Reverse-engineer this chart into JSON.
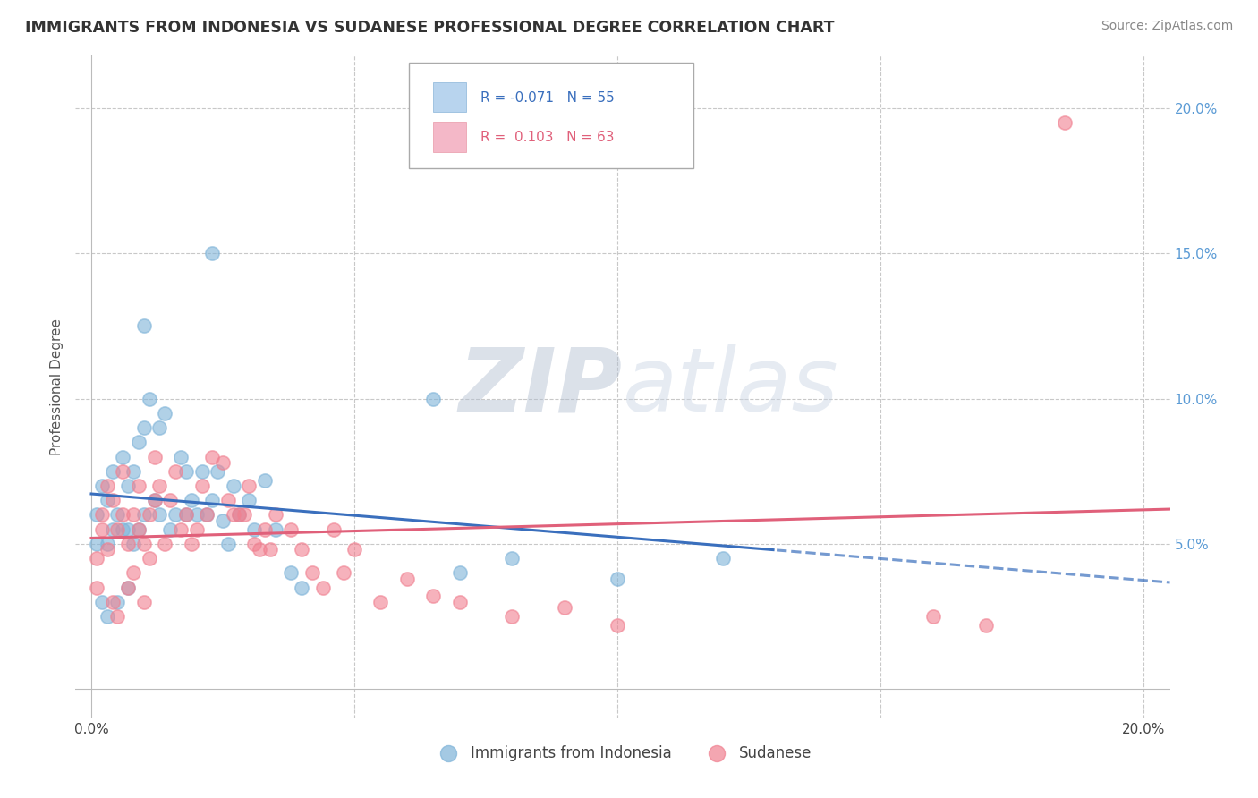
{
  "title": "IMMIGRANTS FROM INDONESIA VS SUDANESE PROFESSIONAL DEGREE CORRELATION CHART",
  "source": "Source: ZipAtlas.com",
  "ylabel_label": "Professional Degree",
  "xlim": [
    0.0,
    0.205
  ],
  "ylim": [
    -0.005,
    0.215
  ],
  "indonesia_color": "#7eb3d8",
  "sudanese_color": "#f08090",
  "indonesia_line_color": "#3a6fbd",
  "sudanese_line_color": "#e0607a",
  "watermark": "ZIPatlas",
  "right_tick_color": "#5b9bd5",
  "indonesia_seed": 42,
  "sudanese_seed": 99,
  "indonesia_points_x": [
    0.001,
    0.001,
    0.002,
    0.002,
    0.003,
    0.003,
    0.003,
    0.004,
    0.004,
    0.005,
    0.005,
    0.006,
    0.006,
    0.007,
    0.007,
    0.007,
    0.008,
    0.008,
    0.009,
    0.009,
    0.01,
    0.01,
    0.011,
    0.012,
    0.013,
    0.013,
    0.014,
    0.015,
    0.016,
    0.017,
    0.018,
    0.018,
    0.019,
    0.02,
    0.021,
    0.022,
    0.023,
    0.024,
    0.025,
    0.026,
    0.027,
    0.028,
    0.03,
    0.031,
    0.033,
    0.035,
    0.038,
    0.04,
    0.065,
    0.07,
    0.08,
    0.1,
    0.12,
    0.023,
    0.01
  ],
  "indonesia_points_y": [
    0.06,
    0.05,
    0.07,
    0.03,
    0.065,
    0.05,
    0.025,
    0.055,
    0.075,
    0.06,
    0.03,
    0.08,
    0.055,
    0.07,
    0.055,
    0.035,
    0.075,
    0.05,
    0.085,
    0.055,
    0.06,
    0.09,
    0.1,
    0.065,
    0.06,
    0.09,
    0.095,
    0.055,
    0.06,
    0.08,
    0.06,
    0.075,
    0.065,
    0.06,
    0.075,
    0.06,
    0.065,
    0.075,
    0.058,
    0.05,
    0.07,
    0.06,
    0.065,
    0.055,
    0.072,
    0.055,
    0.04,
    0.035,
    0.1,
    0.04,
    0.045,
    0.038,
    0.045,
    0.15,
    0.125
  ],
  "sudanese_points_x": [
    0.001,
    0.001,
    0.002,
    0.002,
    0.003,
    0.003,
    0.004,
    0.004,
    0.005,
    0.005,
    0.006,
    0.006,
    0.007,
    0.007,
    0.008,
    0.008,
    0.009,
    0.009,
    0.01,
    0.01,
    0.011,
    0.011,
    0.012,
    0.012,
    0.013,
    0.014,
    0.015,
    0.016,
    0.017,
    0.018,
    0.019,
    0.02,
    0.021,
    0.022,
    0.023,
    0.025,
    0.026,
    0.027,
    0.028,
    0.029,
    0.03,
    0.031,
    0.032,
    0.033,
    0.034,
    0.035,
    0.038,
    0.04,
    0.042,
    0.044,
    0.046,
    0.048,
    0.05,
    0.055,
    0.06,
    0.065,
    0.07,
    0.08,
    0.09,
    0.1,
    0.16,
    0.17,
    0.185
  ],
  "sudanese_points_y": [
    0.045,
    0.035,
    0.055,
    0.06,
    0.07,
    0.048,
    0.065,
    0.03,
    0.055,
    0.025,
    0.06,
    0.075,
    0.05,
    0.035,
    0.06,
    0.04,
    0.07,
    0.055,
    0.05,
    0.03,
    0.06,
    0.045,
    0.08,
    0.065,
    0.07,
    0.05,
    0.065,
    0.075,
    0.055,
    0.06,
    0.05,
    0.055,
    0.07,
    0.06,
    0.08,
    0.078,
    0.065,
    0.06,
    0.06,
    0.06,
    0.07,
    0.05,
    0.048,
    0.055,
    0.048,
    0.06,
    0.055,
    0.048,
    0.04,
    0.035,
    0.055,
    0.04,
    0.048,
    0.03,
    0.038,
    0.032,
    0.03,
    0.025,
    0.028,
    0.022,
    0.025,
    0.022,
    0.195
  ]
}
